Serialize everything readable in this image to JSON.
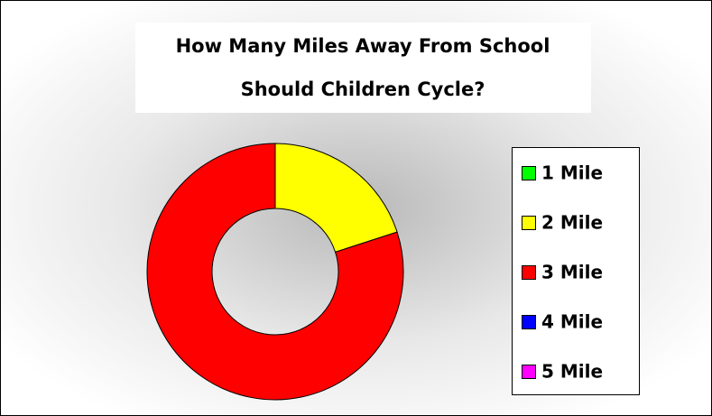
{
  "chart_data": {
    "type": "donut",
    "title": [
      "How Many Miles Away From School",
      "Should Children Cycle?"
    ],
    "categories": [
      "1 Mile",
      "2 Mile",
      "3 Mile",
      "4 Mile",
      "5 Mile"
    ],
    "values": [
      0,
      20,
      80,
      0,
      0
    ],
    "colors": [
      "#00ff00",
      "#ffff00",
      "#ff0000",
      "#0000ff",
      "#ff00ff"
    ],
    "legend": "right"
  }
}
